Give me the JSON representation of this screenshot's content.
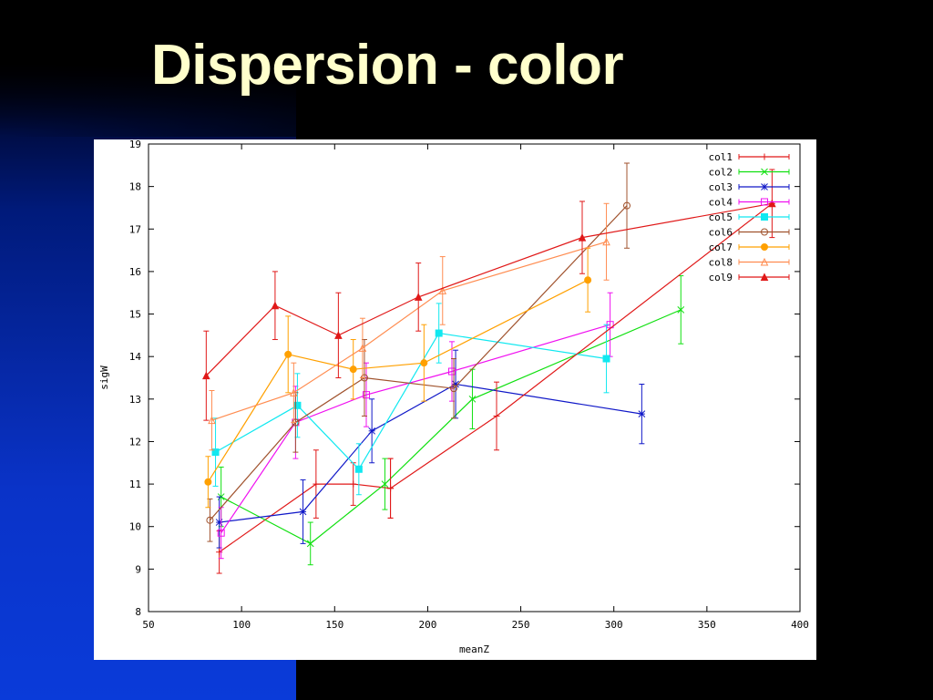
{
  "slide": {
    "title": "Dispersion - color"
  },
  "chart_data": {
    "type": "line",
    "title": "",
    "xlabel": "meanZ",
    "ylabel": "sigW",
    "xlim": [
      50,
      400
    ],
    "ylim": [
      8,
      19
    ],
    "xticks": [
      50,
      100,
      150,
      200,
      250,
      300,
      350,
      400
    ],
    "yticks": [
      8,
      9,
      10,
      11,
      12,
      13,
      14,
      15,
      16,
      17,
      18,
      19
    ],
    "grid": false,
    "legend": "top-right",
    "error_bars": true,
    "series": [
      {
        "name": "col1",
        "color": "#e01818",
        "marker": "plus",
        "x": [
          88,
          140,
          160,
          180
        ],
        "y": [
          9.4,
          11.0,
          11.0,
          10.9
        ],
        "err": [
          0.5,
          0.8,
          0.5,
          0.7
        ]
      },
      {
        "name": "col2",
        "color": "#10e010",
        "marker": "x",
        "x": [
          89,
          137,
          177,
          224,
          336
        ],
        "y": [
          10.7,
          9.6,
          11.0,
          13.0,
          15.1
        ],
        "err": [
          0.7,
          0.5,
          0.6,
          0.7,
          0.8
        ]
      },
      {
        "name": "col3",
        "color": "#1018c8",
        "marker": "star",
        "x": [
          88,
          133,
          170,
          215,
          315
        ],
        "y": [
          10.1,
          10.35,
          12.25,
          13.35,
          12.65
        ],
        "err": [
          0.6,
          0.75,
          0.75,
          0.8,
          0.7
        ]
      },
      {
        "name": "col4",
        "color": "#f010f0",
        "marker": "square",
        "x": [
          89,
          129,
          167,
          213,
          298
        ],
        "y": [
          9.85,
          12.45,
          13.1,
          13.65,
          14.75
        ],
        "err": [
          0.6,
          0.85,
          0.75,
          0.7,
          0.75
        ]
      },
      {
        "name": "col5",
        "color": "#10e8f0",
        "marker": "square-filled",
        "x": [
          86,
          130,
          163,
          206,
          296
        ],
        "y": [
          11.75,
          12.85,
          11.35,
          14.55,
          13.95
        ],
        "err": [
          0.8,
          0.75,
          0.6,
          0.7,
          0.8
        ]
      },
      {
        "name": "col6",
        "color": "#a0522d",
        "marker": "circle",
        "x": [
          83,
          129,
          166,
          214,
          307
        ],
        "y": [
          10.15,
          12.45,
          13.5,
          13.25,
          17.55
        ],
        "err": [
          0.5,
          0.7,
          0.9,
          0.7,
          1.0
        ]
      },
      {
        "name": "col7",
        "color": "#ffa000",
        "marker": "circle-filled",
        "x": [
          82,
          125,
          160,
          198,
          286
        ],
        "y": [
          11.05,
          14.05,
          13.7,
          13.85,
          15.8
        ],
        "err": [
          0.6,
          0.9,
          0.7,
          0.9,
          0.75
        ]
      },
      {
        "name": "col8",
        "color": "#ff8c50",
        "marker": "triangle",
        "x": [
          84,
          128,
          165,
          208,
          296
        ],
        "y": [
          12.5,
          13.15,
          14.2,
          15.55,
          16.7
        ],
        "err": [
          0.7,
          0.7,
          0.7,
          0.8,
          0.9
        ]
      },
      {
        "name": "col9",
        "color": "#e01818",
        "marker": "triangle-filled",
        "x": [
          81,
          118,
          152,
          195,
          283,
          385
        ],
        "y": [
          13.55,
          15.2,
          14.5,
          15.4,
          16.8,
          17.6
        ],
        "err": [
          1.05,
          0.8,
          1.0,
          0.8,
          0.85,
          0.8
        ]
      },
      {
        "name": "",
        "color": "#e01818",
        "marker": "plus",
        "x": [
          180,
          237,
          385
        ],
        "y": [
          10.9,
          12.6,
          17.6
        ],
        "err": [
          0.7,
          0.8,
          0.0
        ]
      }
    ]
  }
}
